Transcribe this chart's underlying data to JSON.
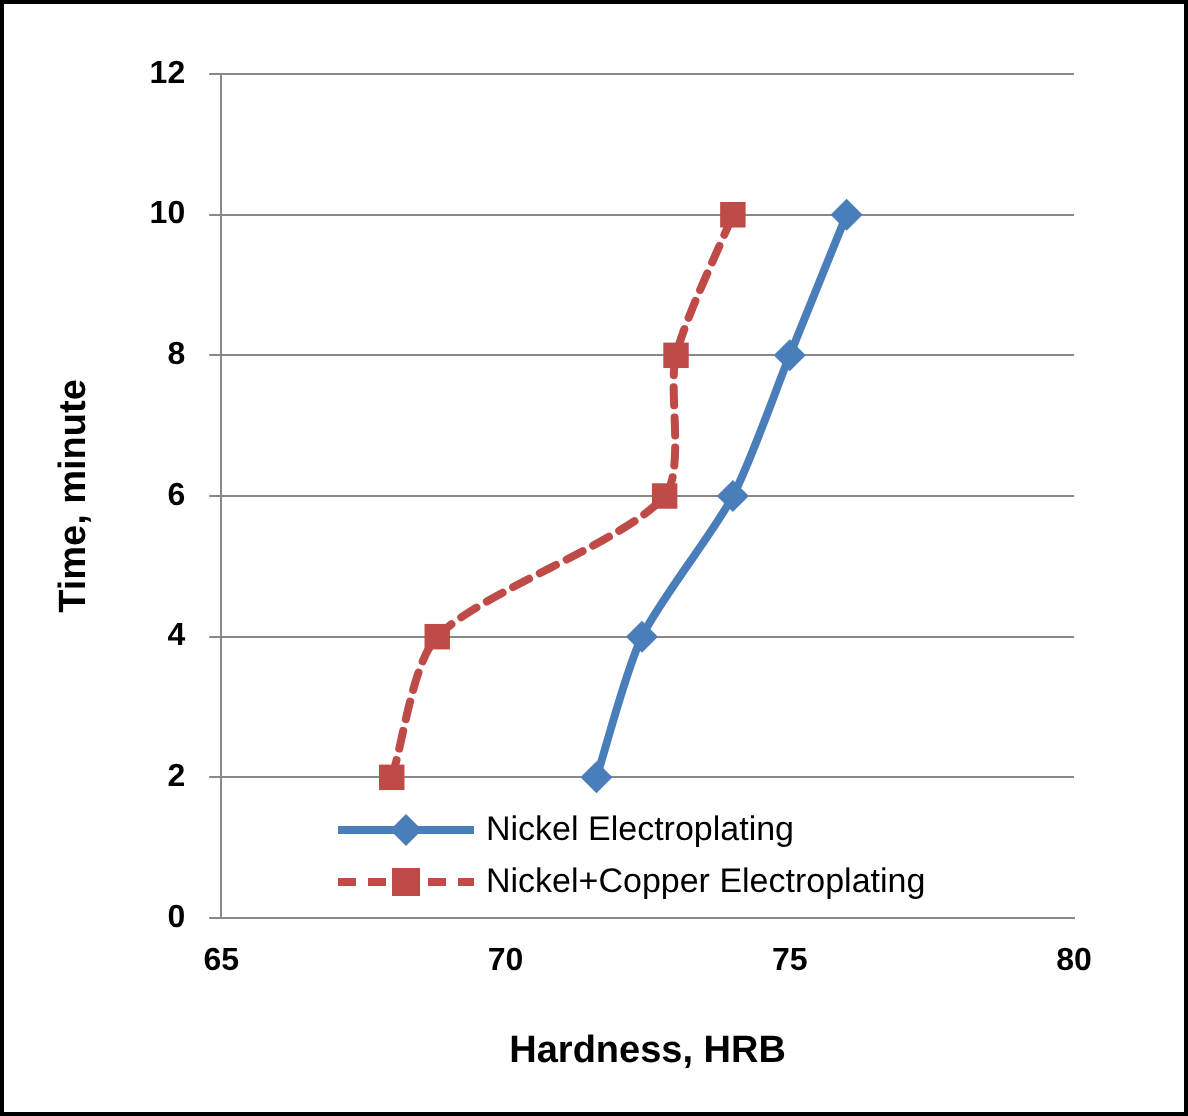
{
  "chart_data": {
    "type": "line",
    "xlabel": "Hardness, HRB",
    "ylabel": "Time, minute",
    "xlim": [
      65,
      80
    ],
    "xticks": [
      65,
      70,
      75,
      80
    ],
    "ylim": [
      0,
      12
    ],
    "yticks": [
      0,
      2,
      4,
      6,
      8,
      10,
      12
    ],
    "grid": "y",
    "legend": "bottom",
    "series": [
      {
        "name": "Nickel Electroplating",
        "color": "#4a7ebb",
        "x": [
          71.6,
          72.4,
          74,
          75,
          76
        ],
        "values": [
          2,
          4,
          6,
          8,
          10
        ],
        "marker": "diamond",
        "line_style": "solid"
      },
      {
        "name": "Nickel+Copper Electroplating",
        "color": "#be4b48",
        "x": [
          68,
          68.8,
          72.8,
          73,
          74
        ],
        "values": [
          2,
          4,
          6,
          8,
          10
        ],
        "marker": "square",
        "line_style": "dashed"
      }
    ]
  }
}
